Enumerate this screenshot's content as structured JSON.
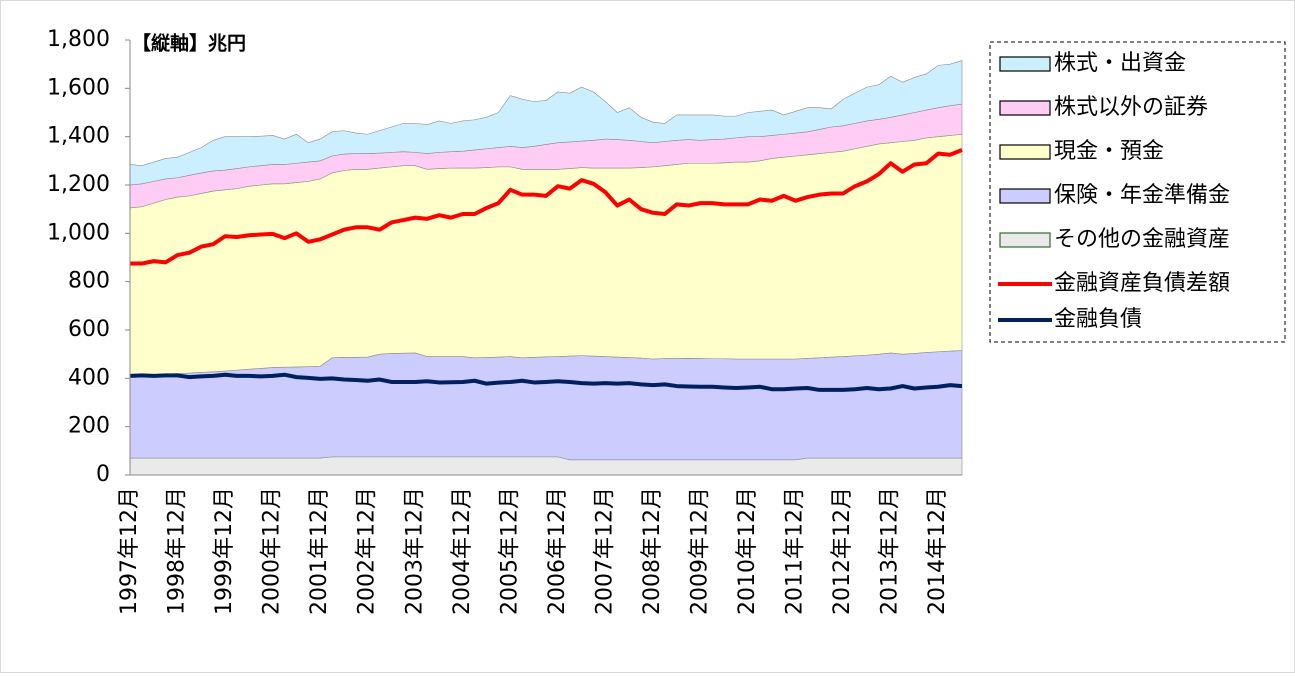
{
  "chart_data": {
    "type": "stacked-area",
    "y_unit_label": "【縦軸】兆円",
    "categories": [
      "1997年12月",
      null,
      null,
      null,
      "1998年12月",
      null,
      null,
      null,
      "1999年12月",
      null,
      null,
      null,
      "2000年12月",
      null,
      null,
      null,
      "2001年12月",
      null,
      null,
      null,
      "2002年12月",
      null,
      null,
      null,
      "2003年12月",
      null,
      null,
      null,
      "2004年12月",
      null,
      null,
      null,
      "2005年12月",
      null,
      null,
      null,
      "2006年12月",
      null,
      null,
      null,
      "2007年12月",
      null,
      null,
      null,
      "2008年12月",
      null,
      null,
      null,
      "2009年12月",
      null,
      null,
      null,
      "2010年12月",
      null,
      null,
      null,
      "2011年12月",
      null,
      null,
      null,
      "2012年12月",
      null,
      null,
      null,
      "2013年12月",
      null,
      null,
      null,
      "2014年12月",
      null,
      null
    ],
    "ylim": [
      0,
      1800
    ],
    "yticks": [
      0,
      200,
      400,
      600,
      800,
      {
        "value": 1000,
        "label": "1,000"
      },
      {
        "value": 1200,
        "label": "1,200"
      },
      {
        "value": 1400,
        "label": "1,400"
      },
      {
        "value": 1600,
        "label": "1,600"
      },
      {
        "value": 1800,
        "label": "1,800"
      }
    ],
    "legend": "right",
    "series": [
      {
        "name": "株式・出資金",
        "type": "area",
        "color": "#ccefff",
        "values": [
          85,
          75,
          80,
          85,
          85,
          95,
          105,
          127,
          138,
          132,
          125,
          122,
          120,
          105,
          120,
          80,
          90,
          100,
          97,
          85,
          80,
          93,
          105,
          117,
          120,
          120,
          130,
          117,
          125,
          125,
          130,
          145,
          210,
          200,
          185,
          182,
          210,
          202,
          223,
          200,
          155,
          112,
          135,
          100,
          85,
          75,
          105,
          102,
          105,
          102,
          95,
          90,
          100,
          105,
          105,
          80,
          90,
          100,
          90,
          75,
          110,
          125,
          140,
          143,
          170,
          135,
          145,
          150,
          175,
          172,
          180
        ]
      },
      {
        "name": "株式以外の証券",
        "type": "area",
        "color": "#ffccf6",
        "values": [
          95,
          95,
          90,
          85,
          80,
          85,
          85,
          83,
          82,
          83,
          80,
          80,
          80,
          80,
          80,
          80,
          75,
          70,
          68,
          65,
          65,
          62,
          60,
          58,
          55,
          65,
          67,
          68,
          70,
          75,
          78,
          80,
          85,
          90,
          95,
          103,
          110,
          110,
          110,
          115,
          120,
          118,
          115,
          108,
          100,
          100,
          100,
          98,
          95,
          98,
          98,
          100,
          105,
          100,
          95,
          95,
          95,
          95,
          100,
          105,
          105,
          105,
          105,
          102,
          105,
          110,
          115,
          115,
          120,
          123,
          125
        ]
      },
      {
        "name": "現金・預金",
        "type": "area",
        "color": "#ffffcc",
        "values": [
          695,
          698,
          711,
          723,
          730,
          733,
          740,
          748,
          750,
          751,
          757,
          759,
          760,
          759,
          763,
          767,
          775,
          765,
          773,
          778,
          777,
          770,
          772,
          776,
          775,
          775,
          778,
          780,
          780,
          785,
          786,
          787,
          785,
          780,
          778,
          776,
          775,
          776,
          778,
          778,
          780,
          782,
          784,
          788,
          795,
          798,
          803,
          807,
          808,
          809,
          811,
          815,
          815,
          820,
          830,
          835,
          840,
          842,
          845,
          847,
          850,
          857,
          864,
          870,
          870,
          880,
          882,
          888,
          890,
          892,
          895
        ]
      },
      {
        "name": "保険・年金準備金",
        "type": "area",
        "color": "#ccccff",
        "values": [
          340,
          342,
          344,
          347,
          350,
          352,
          355,
          357,
          360,
          364,
          368,
          371,
          375,
          376,
          377,
          378,
          380,
          410,
          412,
          412,
          413,
          425,
          428,
          429,
          430,
          415,
          415,
          415,
          415,
          410,
          411,
          413,
          415,
          410,
          412,
          414,
          415,
          429,
          431,
          429,
          427,
          425,
          423,
          421,
          417,
          419,
          419,
          420,
          419,
          418,
          418,
          417,
          417,
          417,
          417,
          417,
          417,
          413,
          415,
          418,
          420,
          423,
          426,
          430,
          435,
          430,
          433,
          437,
          440,
          443,
          445
        ]
      },
      {
        "name": "その他の金融資産",
        "type": "area",
        "color": "#eaeaea",
        "values": [
          70,
          70,
          70,
          70,
          70,
          70,
          70,
          70,
          70,
          70,
          70,
          70,
          70,
          70,
          70,
          70,
          70,
          75,
          75,
          75,
          75,
          75,
          75,
          75,
          75,
          75,
          75,
          75,
          75,
          75,
          75,
          75,
          75,
          75,
          75,
          75,
          75,
          63,
          63,
          63,
          63,
          63,
          63,
          63,
          63,
          63,
          63,
          63,
          63,
          63,
          63,
          63,
          63,
          63,
          63,
          63,
          63,
          70,
          70,
          70,
          70,
          70,
          70,
          70,
          70,
          70,
          70,
          70,
          70,
          70,
          70
        ]
      },
      {
        "name": "金融資産負債差額",
        "type": "line",
        "color": "#ff0000",
        "values": [
          875,
          875,
          885,
          880,
          910,
          920,
          945,
          955,
          988,
          985,
          992,
          995,
          998,
          980,
          1000,
          965,
          975,
          995,
          1015,
          1025,
          1025,
          1015,
          1045,
          1055,
          1065,
          1060,
          1075,
          1065,
          1080,
          1080,
          1105,
          1125,
          1180,
          1160,
          1160,
          1155,
          1195,
          1185,
          1220,
          1205,
          1170,
          1115,
          1140,
          1100,
          1085,
          1080,
          1120,
          1115,
          1125,
          1125,
          1120,
          1120,
          1120,
          1140,
          1135,
          1155,
          1135,
          1150,
          1160,
          1165,
          1165,
          1195,
          1215,
          1245,
          1290,
          1255,
          1285,
          1290,
          1330,
          1325,
          1345
        ]
      },
      {
        "name": "金融負債",
        "type": "line",
        "color": "#002060",
        "values": [
          410,
          412,
          410,
          412,
          412,
          405,
          408,
          410,
          415,
          410,
          410,
          408,
          410,
          415,
          405,
          402,
          398,
          400,
          395,
          393,
          390,
          395,
          385,
          385,
          385,
          388,
          383,
          384,
          385,
          390,
          378,
          382,
          385,
          390,
          383,
          385,
          388,
          385,
          380,
          378,
          380,
          378,
          380,
          375,
          372,
          375,
          368,
          366,
          365,
          365,
          362,
          360,
          362,
          365,
          355,
          355,
          358,
          360,
          352,
          352,
          352,
          355,
          360,
          355,
          358,
          368,
          358,
          362,
          365,
          372,
          368
        ]
      }
    ]
  }
}
